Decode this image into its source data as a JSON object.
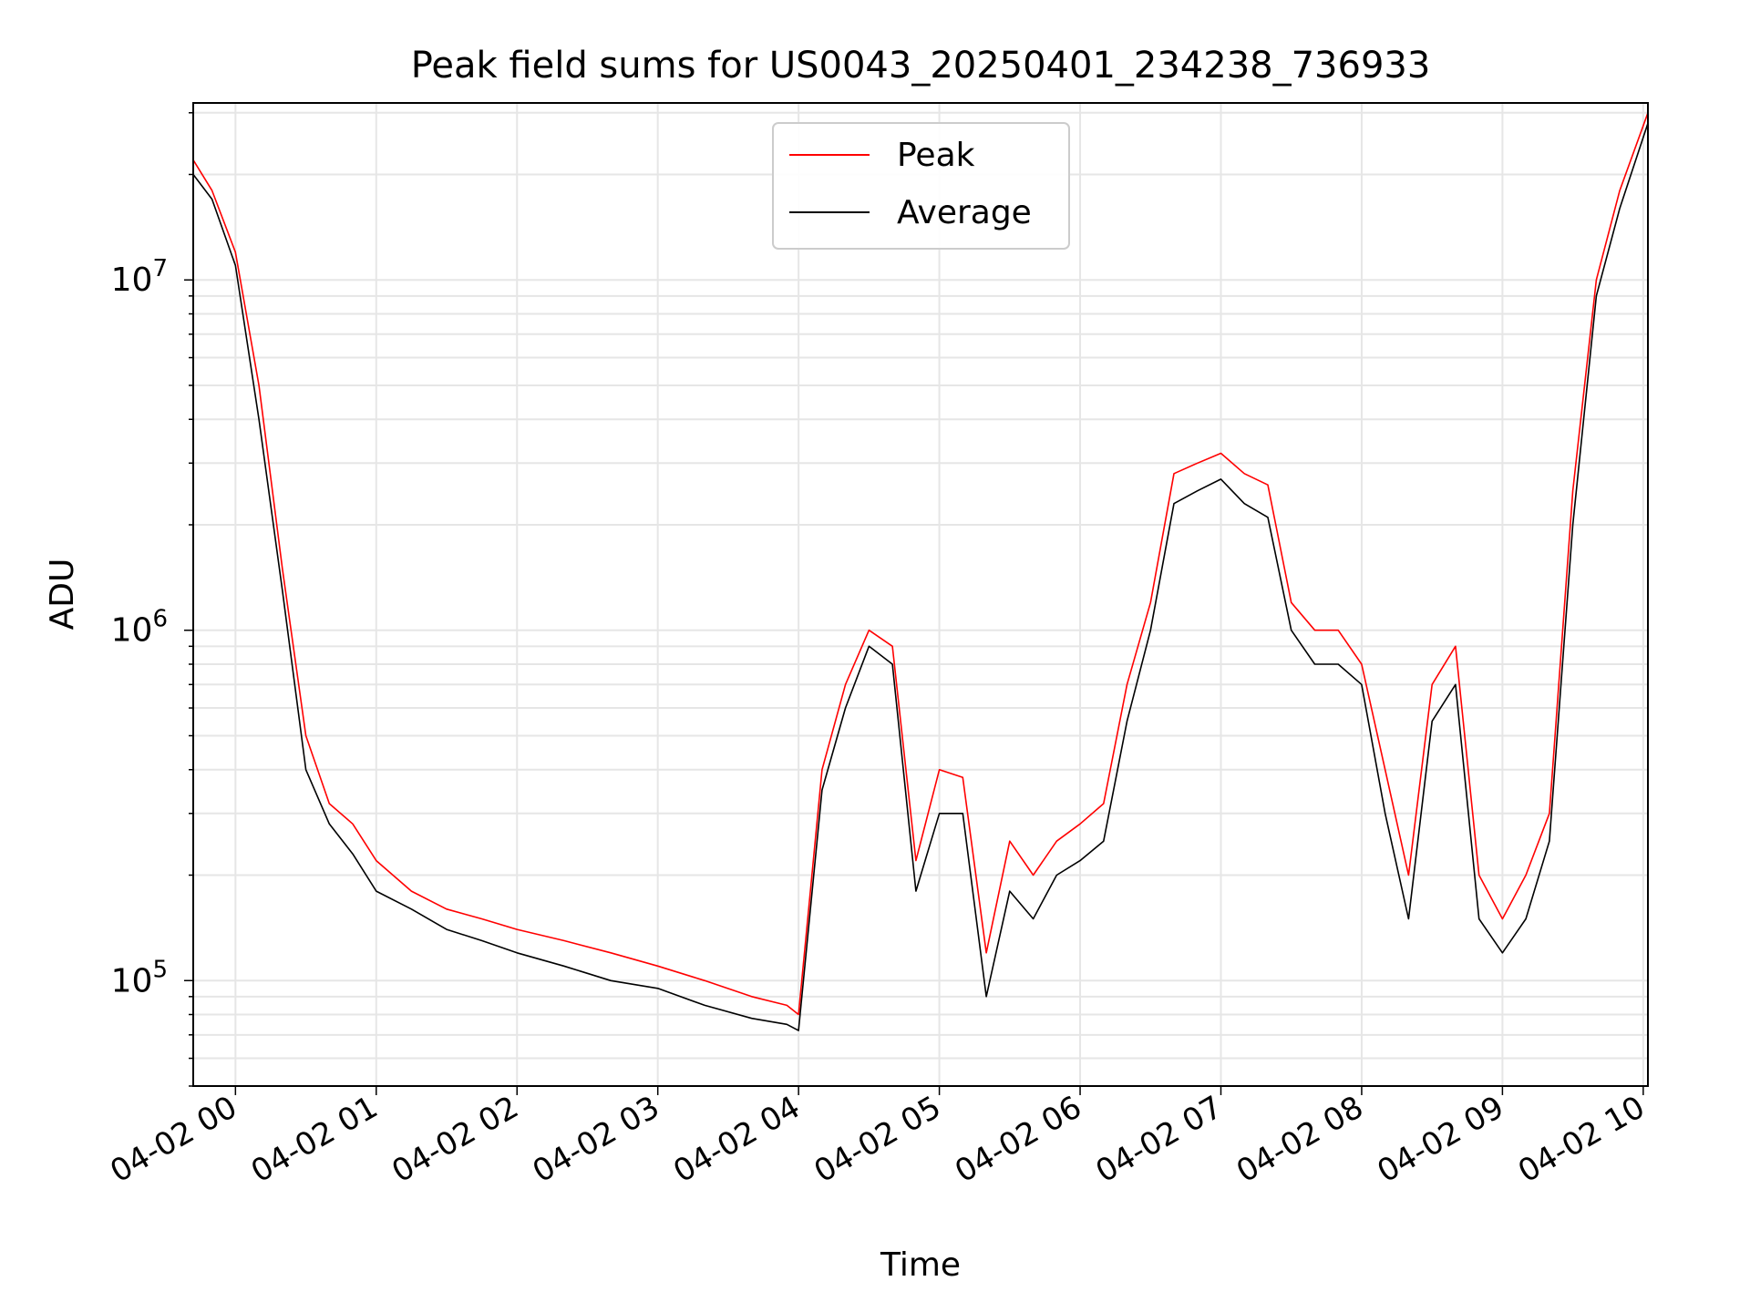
{
  "chart_data": {
    "type": "line",
    "title": "Peak field sums for US0043_20250401_234238_736933",
    "xlabel": "Time",
    "ylabel": "ADU",
    "yscale": "log",
    "ylim": [
      50000,
      32000000
    ],
    "xlim": [
      "04-01 23:42",
      "04-02 10:02"
    ],
    "x_ticks": [
      "04-02 00",
      "04-02 01",
      "04-02 02",
      "04-02 03",
      "04-02 04",
      "04-02 05",
      "04-02 06",
      "04-02 07",
      "04-02 08",
      "04-02 09",
      "04-02 10"
    ],
    "y_ticks": [
      {
        "value": 100000,
        "base": "10",
        "exp": "5"
      },
      {
        "value": 1000000,
        "base": "10",
        "exp": "6"
      },
      {
        "value": 10000000,
        "base": "10",
        "exp": "7"
      }
    ],
    "grid": true,
    "legend_position": "top-center",
    "x": [
      "04-01 23:42",
      "04-01 23:50",
      "04-02 00:00",
      "04-02 00:10",
      "04-02 00:20",
      "04-02 00:30",
      "04-02 00:40",
      "04-02 00:50",
      "04-02 01:00",
      "04-02 01:15",
      "04-02 01:30",
      "04-02 01:45",
      "04-02 02:00",
      "04-02 02:20",
      "04-02 02:40",
      "04-02 03:00",
      "04-02 03:20",
      "04-02 03:40",
      "04-02 03:55",
      "04-02 04:00",
      "04-02 04:10",
      "04-02 04:20",
      "04-02 04:30",
      "04-02 04:40",
      "04-02 04:50",
      "04-02 05:00",
      "04-02 05:10",
      "04-02 05:20",
      "04-02 05:30",
      "04-02 05:40",
      "04-02 05:50",
      "04-02 06:00",
      "04-02 06:10",
      "04-02 06:20",
      "04-02 06:30",
      "04-02 06:40",
      "04-02 06:50",
      "04-02 07:00",
      "04-02 07:10",
      "04-02 07:20",
      "04-02 07:30",
      "04-02 07:40",
      "04-02 07:50",
      "04-02 08:00",
      "04-02 08:10",
      "04-02 08:20",
      "04-02 08:30",
      "04-02 08:40",
      "04-02 08:50",
      "04-02 09:00",
      "04-02 09:10",
      "04-02 09:20",
      "04-02 09:30",
      "04-02 09:40",
      "04-02 09:50",
      "04-02 10:02"
    ],
    "series": [
      {
        "name": "Peak",
        "color": "#ff0000",
        "values": [
          22000000,
          18000000,
          12000000,
          5000000,
          1500000,
          500000,
          320000,
          280000,
          220000,
          180000,
          160000,
          150000,
          140000,
          130000,
          120000,
          110000,
          100000,
          90000,
          85000,
          80000,
          400000,
          700000,
          1000000,
          900000,
          220000,
          400000,
          380000,
          120000,
          250000,
          200000,
          250000,
          280000,
          320000,
          700000,
          1200000,
          2800000,
          3000000,
          3200000,
          2800000,
          2600000,
          1200000,
          1000000,
          1000000,
          800000,
          400000,
          200000,
          700000,
          900000,
          200000,
          150000,
          200000,
          300000,
          2500000,
          10000000,
          18000000,
          30000000
        ]
      },
      {
        "name": "Average",
        "color": "#000000",
        "values": [
          20000000,
          17000000,
          11000000,
          4000000,
          1300000,
          400000,
          280000,
          230000,
          180000,
          160000,
          140000,
          130000,
          120000,
          110000,
          100000,
          95000,
          85000,
          78000,
          75000,
          72000,
          350000,
          600000,
          900000,
          800000,
          180000,
          300000,
          300000,
          90000,
          180000,
          150000,
          200000,
          220000,
          250000,
          550000,
          1000000,
          2300000,
          2500000,
          2700000,
          2300000,
          2100000,
          1000000,
          800000,
          800000,
          700000,
          300000,
          150000,
          550000,
          700000,
          150000,
          120000,
          150000,
          250000,
          2000000,
          9000000,
          16000000,
          28000000
        ]
      }
    ]
  }
}
